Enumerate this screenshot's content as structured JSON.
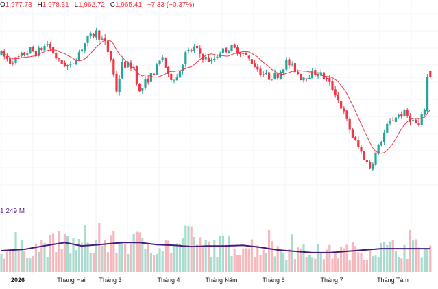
{
  "legend": {
    "open_key": "O",
    "open": "1,977.73",
    "high_key": "H",
    "high": "1,978.31",
    "low_key": "L",
    "low": "1,962.72",
    "close_key": "C",
    "close": "1,965.41",
    "change": "−7.33 (−0.37%)"
  },
  "volume_legend": {
    "index": "1",
    "value": "249 M"
  },
  "colors": {
    "up": "#26a69a",
    "down": "#f23645",
    "up_volume": "#a9dccf",
    "down_volume": "#f4b8bd",
    "ma_price": "#f23645",
    "ma_volume": "#4a1a7a",
    "last_price_line": "#f7b6bb",
    "grid": "#f0f3fa"
  },
  "chart_data": {
    "type": "candlestick",
    "x_labels": [
      "2026",
      "Tháng Hai",
      "Tháng 3",
      "Tháng 4",
      "Tháng Năm",
      "Tháng 6",
      "Tháng 7",
      "Tháng Tám"
    ],
    "x_label_months": [
      1,
      2,
      3,
      4,
      5,
      6,
      7,
      8
    ],
    "last_price": 1965.41,
    "price_waypoints": [
      [
        0,
        2010
      ],
      [
        3,
        1995
      ],
      [
        6,
        2002
      ],
      [
        10,
        2018
      ],
      [
        12,
        2012
      ],
      [
        16,
        2030
      ],
      [
        20,
        1995
      ],
      [
        24,
        1985
      ],
      [
        26,
        2005
      ],
      [
        30,
        2040
      ],
      [
        33,
        2052
      ],
      [
        36,
        2030
      ],
      [
        38,
        2000
      ],
      [
        40,
        1940
      ],
      [
        42,
        1990
      ],
      [
        46,
        1985
      ],
      [
        48,
        1935
      ],
      [
        50,
        1955
      ],
      [
        53,
        1975
      ],
      [
        56,
        2005
      ],
      [
        58,
        1965
      ],
      [
        61,
        1965
      ],
      [
        64,
        2010
      ],
      [
        67,
        2022
      ],
      [
        70,
        2005
      ],
      [
        73,
        1995
      ],
      [
        76,
        2015
      ],
      [
        80,
        2022
      ],
      [
        83,
        2015
      ],
      [
        87,
        1995
      ],
      [
        90,
        1975
      ],
      [
        93,
        1965
      ],
      [
        96,
        1970
      ],
      [
        99,
        1995
      ],
      [
        102,
        1980
      ],
      [
        104,
        1965
      ],
      [
        107,
        1970
      ],
      [
        110,
        1975
      ],
      [
        113,
        1960
      ],
      [
        116,
        1935
      ],
      [
        119,
        1895
      ],
      [
        122,
        1850
      ],
      [
        125,
        1820
      ],
      [
        128,
        1790
      ],
      [
        131,
        1830
      ],
      [
        134,
        1870
      ],
      [
        137,
        1890
      ],
      [
        140,
        1895
      ],
      [
        143,
        1880
      ],
      [
        145,
        1870
      ],
      [
        147,
        1905
      ],
      [
        148,
        1965
      ]
    ],
    "volume_ma_waypoints": [
      [
        0,
        32
      ],
      [
        8,
        34
      ],
      [
        16,
        40
      ],
      [
        22,
        44
      ],
      [
        28,
        39
      ],
      [
        34,
        41
      ],
      [
        42,
        44
      ],
      [
        48,
        44
      ],
      [
        54,
        41
      ],
      [
        60,
        40
      ],
      [
        66,
        38
      ],
      [
        72,
        39
      ],
      [
        78,
        39
      ],
      [
        84,
        40
      ],
      [
        90,
        37
      ],
      [
        96,
        33
      ],
      [
        102,
        31
      ],
      [
        108,
        29
      ],
      [
        114,
        29
      ],
      [
        120,
        31
      ],
      [
        126,
        33
      ],
      [
        132,
        35
      ],
      [
        138,
        35
      ],
      [
        144,
        35
      ],
      [
        148,
        35
      ]
    ],
    "volume_max": 100,
    "price_ma_period": 10
  }
}
